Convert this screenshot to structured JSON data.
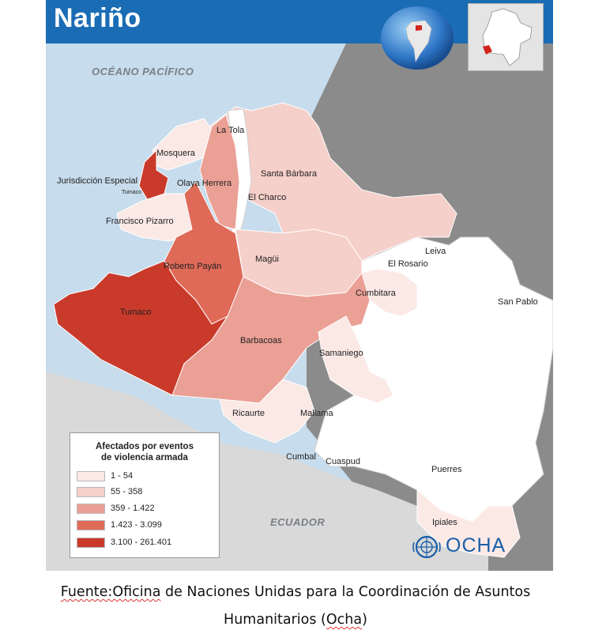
{
  "map": {
    "title": "Nariño",
    "ocean_label": "OCÉANO PACÍFICO",
    "country_label": "ECUADOR",
    "municipalities": {
      "la_tola": "La Tola",
      "mosquera": "Mosquera",
      "santa_barbara": "Santa Bárbara",
      "jurisdiccion": "Jurisdicción Especial",
      "tumaco_small": "Tumaco",
      "olaya": "Olaya Herrera",
      "el_charco": "El Charco",
      "francisco_pizarro": "Francisco Pizarro",
      "leiva": "Leiva",
      "el_rosario": "El Rosario",
      "magui": "Magüi",
      "roberto_payan": "Roberto Payán",
      "cumbitara": "Cumbitara",
      "san_pablo": "San Pablo",
      "tumaco": "Tumaco",
      "barbacoas": "Barbacoas",
      "samaniego": "Samaniego",
      "ricaurte": "Ricaurte",
      "mallama": "Mallama",
      "cumbal": "Cumbal",
      "cuaspud": "Cuaspud",
      "puerres": "Puerres",
      "ipiales": "Ipiales"
    },
    "colors": {
      "sea": "#c7dcec",
      "land": "#8b8b8b",
      "ecuador": "#d9d9d9",
      "white_fill": "#ffffff",
      "c1": "#fbe9e6",
      "c2": "#f5cfc9",
      "c3": "#eba095",
      "c4": "#df6a58",
      "c5": "#c93a2a",
      "header": "#1a6cb5"
    }
  },
  "legend": {
    "title_line1": "Afectados por eventos",
    "title_line2": "de violencia armada",
    "items": [
      {
        "label": "1 - 54",
        "color": "#fbe9e6"
      },
      {
        "label": "55 - 358",
        "color": "#f5cfc9"
      },
      {
        "label": "359 - 1.422",
        "color": "#eba095"
      },
      {
        "label": "1.423 - 3.099",
        "color": "#df6a58"
      },
      {
        "label": "3.100 - 261.401",
        "color": "#c93a2a"
      }
    ]
  },
  "logo": {
    "text": "OCHA"
  },
  "caption": {
    "source_word": "Fuente:Oficina",
    "line1_rest": " de Naciones Unidas para la Coordinación de Asuntos",
    "line2_pre": "Humanitarios (",
    "line2_underlined": "Ocha",
    "line2_post": ")"
  }
}
